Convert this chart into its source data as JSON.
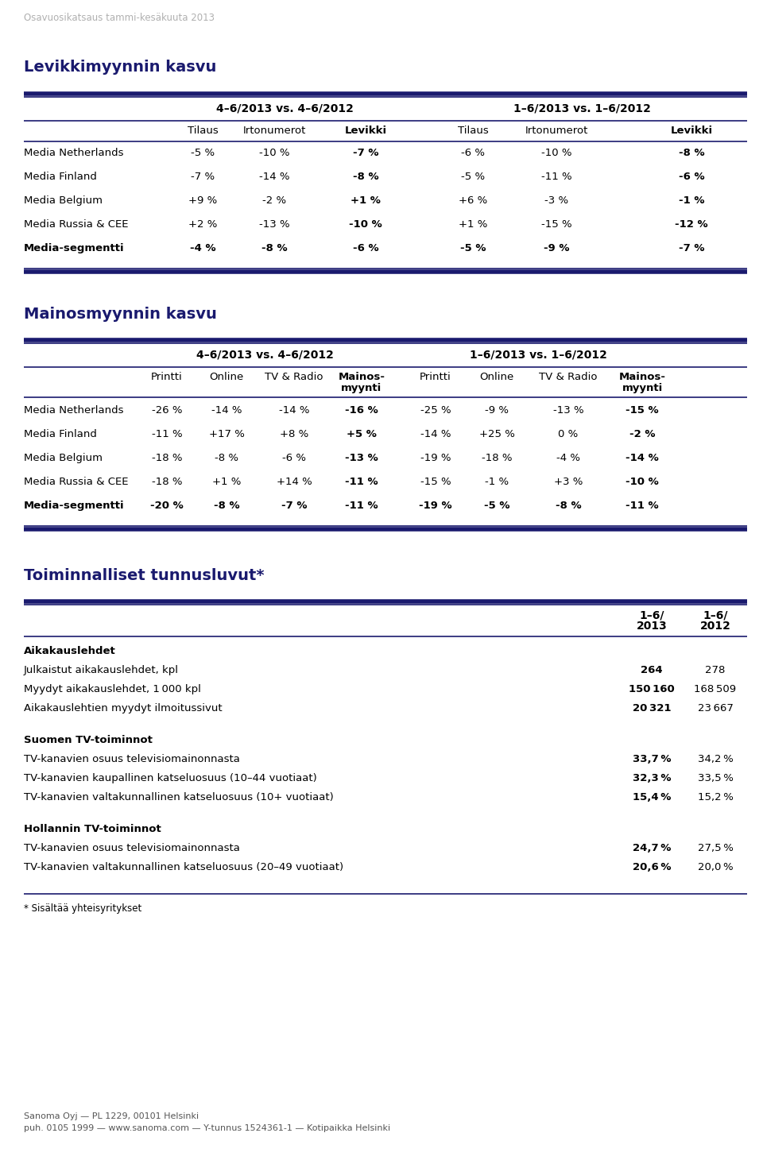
{
  "page_subtitle": "Osavuosikatsaus tammi-kesäkuuta 2013",
  "footer_line1": "Sanoma Oyj — PL 1229, 00101 Helsinki",
  "footer_line2": "puh. 0105 1999 — www.sanoma.com — Y-tunnus 1524361-1 — Kotipaikka Helsinki",
  "section1_title": "Levikkimyynnin kasvu",
  "section1_period1": "4–6/2013 vs. 4–6/2012",
  "section1_period2": "1–6/2013 vs. 1–6/2012",
  "section1_rows": [
    [
      "Media Netherlands",
      "-5 %",
      "-10 %",
      "-7 %",
      "-6 %",
      "-10 %",
      "-8 %"
    ],
    [
      "Media Finland",
      "-7 %",
      "-14 %",
      "-8 %",
      "-5 %",
      "-11 %",
      "-6 %"
    ],
    [
      "Media Belgium",
      "+9 %",
      "-2 %",
      "+1 %",
      "+6 %",
      "-3 %",
      "-1 %"
    ],
    [
      "Media Russia & CEE",
      "+2 %",
      "-13 %",
      "-10 %",
      "+1 %",
      "-15 %",
      "-12 %"
    ],
    [
      "Media-segmentti",
      "-4 %",
      "-8 %",
      "-6 %",
      "-5 %",
      "-9 %",
      "-7 %"
    ]
  ],
  "section1_bold_rows": [
    4
  ],
  "section2_title": "Mainosmyynnin kasvu",
  "section2_period1": "4–6/2013 vs. 4–6/2012",
  "section2_period2": "1–6/2013 vs. 1–6/2012",
  "section2_rows": [
    [
      "Media Netherlands",
      "-26 %",
      "-14 %",
      "-14 %",
      "-16 %",
      "-25 %",
      "-9 %",
      "-13 %",
      "-15 %"
    ],
    [
      "Media Finland",
      "-11 %",
      "+17 %",
      "+8 %",
      "+5 %",
      "-14 %",
      "+25 %",
      "0 %",
      "-2 %"
    ],
    [
      "Media Belgium",
      "-18 %",
      "-8 %",
      "-6 %",
      "-13 %",
      "-19 %",
      "-18 %",
      "-4 %",
      "-14 %"
    ],
    [
      "Media Russia & CEE",
      "-18 %",
      "+1 %",
      "+14 %",
      "-11 %",
      "-15 %",
      "-1 %",
      "+3 %",
      "-10 %"
    ],
    [
      "Media-segmentti",
      "-20 %",
      "-8 %",
      "-7 %",
      "-11 %",
      "-19 %",
      "-5 %",
      "-8 %",
      "-11 %"
    ]
  ],
  "section2_bold_rows": [
    4
  ],
  "section3_title": "Toiminnalliset tunnusluvut*",
  "section3_groups": [
    {
      "group_title": "Aikakauslehdet",
      "rows": [
        [
          "Julkaistut aikakauslehdet, kpl",
          "264",
          "278"
        ],
        [
          "Myydyt aikakauslehdet, 1 000 kpl",
          "150 160",
          "168 509"
        ],
        [
          "Aikakauslehtien myydyt ilmoitussivut",
          "20 321",
          "23 667"
        ]
      ]
    },
    {
      "group_title": "Suomen TV-toiminnot",
      "rows": [
        [
          "TV-kanavien osuus televisiomainonnasta",
          "33,7 %",
          "34,2 %"
        ],
        [
          "TV-kanavien kaupallinen katseluosuus (10–44 vuotiaat)",
          "32,3 %",
          "33,5 %"
        ],
        [
          "TV-kanavien valtakunnallinen katseluosuus (10+ vuotiaat)",
          "15,4 %",
          "15,2 %"
        ]
      ]
    },
    {
      "group_title": "Hollannin TV-toiminnot",
      "rows": [
        [
          "TV-kanavien osuus televisiomainonnasta",
          "24,7 %",
          "27,5 %"
        ],
        [
          "TV-kanavien valtakunnallinen katseluosuus (20–49 vuotiaat)",
          "20,6 %",
          "20,0 %"
        ]
      ]
    }
  ],
  "section3_footnote": "* Sisältää yhteisyritykset",
  "dark_blue": "#1a1a6e",
  "subtitle_color": "#b0b0b0",
  "footer_color": "#555555"
}
